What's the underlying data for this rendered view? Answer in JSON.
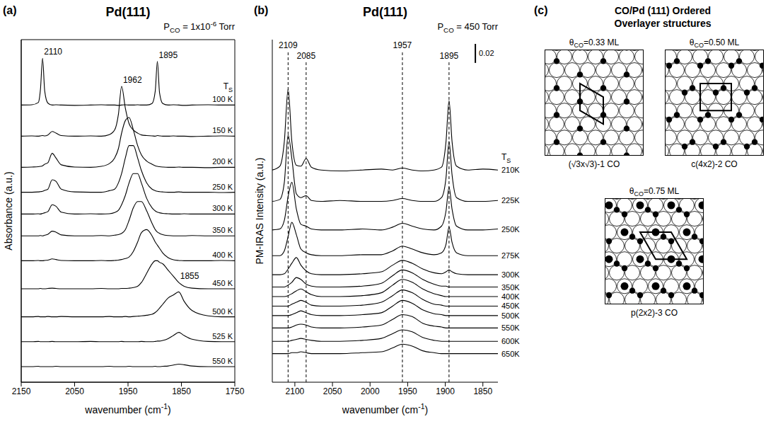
{
  "chart_data": [
    {
      "type": "line",
      "panel": "(a)",
      "title": "Pd(111)",
      "subtitle": [
        "P",
        {
          "sub": "CO"
        },
        " = 1x10",
        {
          "sup": "-6"
        },
        " Torr"
      ],
      "x_label": [
        "wavenumber (cm",
        {
          "sup": "-1"
        },
        ")"
      ],
      "y_label": "Absorbance (a.u.)",
      "legend_title": [
        "T",
        {
          "sub": "S"
        }
      ],
      "x": [
        2150,
        2130,
        2118,
        2114,
        2110,
        2106,
        2100,
        2092,
        2085,
        2075,
        2050,
        2020,
        2000,
        1985,
        1975,
        1968,
        1962,
        1955,
        1948,
        1940,
        1932,
        1925,
        1915,
        1905,
        1899,
        1895,
        1891,
        1885,
        1875,
        1865,
        1855,
        1845,
        1830,
        1800,
        1775,
        1750
      ],
      "xlim": [
        2150,
        1750
      ],
      "xticks": [
        2150,
        2050,
        1950,
        1850,
        1750
      ],
      "ylim": [
        1.5,
        12.5
      ],
      "tick_labels": "x",
      "grid": false,
      "color": "#000000",
      "series": [
        {
          "name": "100 K",
          "values": [
            10.4,
            10.41,
            10.48,
            10.9,
            11.9,
            10.85,
            10.46,
            10.4,
            10.41,
            10.4,
            10.39,
            10.4,
            10.41,
            10.4,
            10.4,
            10.39,
            10.4,
            10.41,
            10.4,
            10.4,
            10.41,
            10.4,
            10.4,
            10.45,
            10.85,
            11.8,
            10.8,
            10.45,
            10.4,
            10.41,
            10.4,
            10.39,
            10.4,
            10.41,
            10.4,
            10.4
          ]
        },
        {
          "name": "150 K",
          "values": [
            9.4,
            9.41,
            9.4,
            9.41,
            9.42,
            9.41,
            9.44,
            9.55,
            9.5,
            9.42,
            9.4,
            9.41,
            9.4,
            9.45,
            9.6,
            10.1,
            11.0,
            10.3,
            9.8,
            9.6,
            9.5,
            9.44,
            9.42,
            9.41,
            9.4,
            9.42,
            9.41,
            9.4,
            9.4,
            9.41,
            9.4,
            9.4,
            9.39,
            9.4,
            9.41,
            9.4
          ]
        },
        {
          "name": "200 K",
          "values": [
            8.4,
            8.41,
            8.42,
            8.43,
            8.45,
            8.5,
            8.55,
            8.85,
            8.7,
            8.48,
            8.41,
            8.4,
            8.43,
            8.52,
            8.7,
            9.0,
            9.5,
            9.9,
            10.0,
            9.6,
            9.1,
            8.8,
            8.6,
            8.5,
            8.45,
            8.43,
            8.42,
            8.41,
            8.4,
            8.4,
            8.41,
            8.4,
            8.4,
            8.39,
            8.4,
            8.4
          ]
        },
        {
          "name": "250 K",
          "values": [
            7.6,
            7.6,
            7.61,
            7.62,
            7.63,
            7.66,
            7.7,
            8.0,
            7.95,
            7.7,
            7.61,
            7.6,
            7.6,
            7.65,
            7.7,
            7.9,
            8.2,
            8.7,
            9.1,
            9.1,
            8.7,
            8.3,
            7.9,
            7.7,
            7.65,
            7.63,
            7.62,
            7.61,
            7.6,
            7.6,
            7.61,
            7.6,
            7.6,
            7.6,
            7.59,
            7.6
          ]
        },
        {
          "name": "300 K",
          "values": [
            6.9,
            6.9,
            6.91,
            6.9,
            6.92,
            6.94,
            6.98,
            7.2,
            7.15,
            6.96,
            6.9,
            6.91,
            6.9,
            6.91,
            6.95,
            7.02,
            7.2,
            7.5,
            7.9,
            8.2,
            8.2,
            7.9,
            7.4,
            7.1,
            7.0,
            6.96,
            6.94,
            6.92,
            6.91,
            6.9,
            6.9,
            6.91,
            6.9,
            6.9,
            6.9,
            6.9
          ]
        },
        {
          "name": "350 K",
          "values": [
            6.2,
            6.2,
            6.2,
            6.21,
            6.2,
            6.22,
            6.25,
            6.35,
            6.32,
            6.23,
            6.2,
            6.2,
            6.21,
            6.2,
            6.22,
            6.24,
            6.28,
            6.4,
            6.7,
            7.1,
            7.3,
            7.3,
            7.0,
            6.6,
            6.4,
            6.32,
            6.28,
            6.24,
            6.21,
            6.2,
            6.2,
            6.2,
            6.21,
            6.2,
            6.2,
            6.2
          ]
        },
        {
          "name": "400 K",
          "values": [
            5.4,
            5.4,
            5.41,
            5.4,
            5.4,
            5.41,
            5.42,
            5.46,
            5.44,
            5.41,
            5.4,
            5.4,
            5.41,
            5.4,
            5.41,
            5.42,
            5.44,
            5.47,
            5.52,
            5.7,
            6.0,
            6.3,
            6.4,
            6.2,
            6.0,
            5.9,
            5.8,
            5.65,
            5.5,
            5.43,
            5.41,
            5.4,
            5.4,
            5.4,
            5.41,
            5.4
          ]
        },
        {
          "name": "450 K",
          "values": [
            4.5,
            4.5,
            4.5,
            4.51,
            4.5,
            4.5,
            4.51,
            4.52,
            4.51,
            4.5,
            4.5,
            4.5,
            4.51,
            4.5,
            4.5,
            4.5,
            4.51,
            4.51,
            4.52,
            4.54,
            4.58,
            4.7,
            5.0,
            5.3,
            5.4,
            5.4,
            5.35,
            5.3,
            5.1,
            4.9,
            4.7,
            4.58,
            4.52,
            4.5,
            4.5,
            4.5
          ]
        },
        {
          "name": "500 K",
          "values": [
            3.6,
            3.6,
            3.61,
            3.6,
            3.6,
            3.6,
            3.61,
            3.6,
            3.6,
            3.61,
            3.6,
            3.6,
            3.6,
            3.61,
            3.6,
            3.6,
            3.6,
            3.61,
            3.6,
            3.61,
            3.62,
            3.63,
            3.65,
            3.68,
            3.74,
            3.8,
            3.88,
            4.0,
            4.2,
            4.3,
            4.4,
            4.1,
            3.8,
            3.63,
            3.6,
            3.6
          ]
        },
        {
          "name": "525 K",
          "values": [
            2.8,
            2.8,
            2.81,
            2.8,
            2.8,
            2.8,
            2.8,
            2.81,
            2.8,
            2.8,
            2.8,
            2.81,
            2.8,
            2.8,
            2.8,
            2.8,
            2.81,
            2.8,
            2.8,
            2.8,
            2.8,
            2.81,
            2.8,
            2.8,
            2.81,
            2.82,
            2.82,
            2.84,
            2.9,
            3.0,
            3.1,
            3.0,
            2.88,
            2.81,
            2.8,
            2.8
          ]
        },
        {
          "name": "550 K",
          "values": [
            2.0,
            2.0,
            2.01,
            2.0,
            2.0,
            2.0,
            2.0,
            2.0,
            2.01,
            2.0,
            2.0,
            2.0,
            2.0,
            2.01,
            2.0,
            2.0,
            2.0,
            2.0,
            2.01,
            2.0,
            2.0,
            2.0,
            2.0,
            2.0,
            2.01,
            2.0,
            2.0,
            2.01,
            2.02,
            2.05,
            2.08,
            2.06,
            2.02,
            2.0,
            2.0,
            2.0
          ]
        }
      ],
      "peak_labels": [
        {
          "value": 2110,
          "series": "100 K"
        },
        {
          "value": 1962,
          "series": "150 K"
        },
        {
          "value": 1895,
          "series": "100 K"
        },
        {
          "value": 1855,
          "series": "450 K"
        }
      ]
    },
    {
      "type": "line",
      "panel": "(b)",
      "title": "Pd(111)",
      "subtitle": [
        "P",
        {
          "sub": "CO"
        },
        " = 450 Torr"
      ],
      "x_label": [
        "wavenumber (cm",
        {
          "sup": "-1"
        },
        ")"
      ],
      "y_label": "PM-IRAS Intensity (a.u.)",
      "legend_title": [
        "T",
        {
          "sub": "S"
        }
      ],
      "x": [
        2130,
        2120,
        2114,
        2109,
        2104,
        2098,
        2092,
        2085,
        2078,
        2065,
        2040,
        2010,
        1985,
        1970,
        1957,
        1944,
        1930,
        1915,
        1905,
        1899,
        1895,
        1891,
        1885,
        1870,
        1850,
        1830
      ],
      "xlim": [
        2130,
        1830
      ],
      "xticks": [
        2100,
        2050,
        2000,
        1950,
        1900,
        1850
      ],
      "ylim": [
        0,
        0.36
      ],
      "tick_labels": "x",
      "grid": false,
      "color": "#000000",
      "scale_bar": 0.02,
      "peak_lines": [
        2109,
        2085,
        1957,
        1895
      ],
      "series": [
        {
          "name": "210K",
          "values": [
            0.223,
            0.227,
            0.253,
            0.308,
            0.253,
            0.228,
            0.227,
            0.235,
            0.226,
            0.223,
            0.222,
            0.223,
            0.224,
            0.223,
            0.225,
            0.223,
            0.222,
            0.223,
            0.226,
            0.253,
            0.296,
            0.253,
            0.227,
            0.223,
            0.224,
            0.223
          ]
        },
        {
          "name": "225K",
          "values": [
            0.19,
            0.192,
            0.21,
            0.26,
            0.235,
            0.198,
            0.194,
            0.196,
            0.191,
            0.19,
            0.191,
            0.19,
            0.19,
            0.191,
            0.193,
            0.191,
            0.19,
            0.19,
            0.194,
            0.215,
            0.253,
            0.218,
            0.194,
            0.19,
            0.19,
            0.191
          ]
        },
        {
          "name": "250K",
          "values": [
            0.16,
            0.161,
            0.17,
            0.195,
            0.21,
            0.182,
            0.166,
            0.164,
            0.161,
            0.16,
            0.16,
            0.161,
            0.16,
            0.163,
            0.167,
            0.164,
            0.161,
            0.16,
            0.164,
            0.18,
            0.205,
            0.182,
            0.164,
            0.16,
            0.16,
            0.161
          ]
        },
        {
          "name": "275K",
          "values": [
            0.133,
            0.133,
            0.138,
            0.153,
            0.168,
            0.155,
            0.14,
            0.136,
            0.134,
            0.133,
            0.133,
            0.134,
            0.134,
            0.138,
            0.143,
            0.14,
            0.136,
            0.134,
            0.136,
            0.145,
            0.163,
            0.147,
            0.136,
            0.133,
            0.133,
            0.133
          ]
        },
        {
          "name": "300K",
          "values": [
            0.113,
            0.113,
            0.114,
            0.119,
            0.125,
            0.131,
            0.123,
            0.117,
            0.114,
            0.113,
            0.113,
            0.114,
            0.116,
            0.123,
            0.128,
            0.125,
            0.119,
            0.115,
            0.114,
            0.116,
            0.118,
            0.116,
            0.114,
            0.113,
            0.113,
            0.113
          ]
        },
        {
          "name": "350K",
          "values": [
            0.1,
            0.1,
            0.1,
            0.102,
            0.105,
            0.11,
            0.108,
            0.103,
            0.101,
            0.1,
            0.1,
            0.101,
            0.104,
            0.112,
            0.118,
            0.115,
            0.108,
            0.103,
            0.101,
            0.101,
            0.1,
            0.1,
            0.1,
            0.1,
            0.1,
            0.1
          ]
        },
        {
          "name": "400K",
          "values": [
            0.09,
            0.09,
            0.09,
            0.091,
            0.093,
            0.096,
            0.098,
            0.095,
            0.092,
            0.09,
            0.09,
            0.091,
            0.094,
            0.102,
            0.108,
            0.105,
            0.098,
            0.093,
            0.091,
            0.09,
            0.09,
            0.09,
            0.09,
            0.09,
            0.09,
            0.09
          ]
        },
        {
          "name": "450K",
          "values": [
            0.08,
            0.08,
            0.08,
            0.08,
            0.082,
            0.084,
            0.086,
            0.084,
            0.081,
            0.08,
            0.08,
            0.081,
            0.084,
            0.091,
            0.097,
            0.094,
            0.087,
            0.082,
            0.081,
            0.08,
            0.08,
            0.08,
            0.08,
            0.08,
            0.08,
            0.08
          ]
        },
        {
          "name": "500K",
          "values": [
            0.07,
            0.07,
            0.07,
            0.07,
            0.071,
            0.073,
            0.075,
            0.073,
            0.071,
            0.07,
            0.07,
            0.071,
            0.073,
            0.08,
            0.086,
            0.083,
            0.076,
            0.072,
            0.071,
            0.07,
            0.07,
            0.07,
            0.07,
            0.07,
            0.07,
            0.07
          ]
        },
        {
          "name": "550K",
          "values": [
            0.057,
            0.057,
            0.057,
            0.057,
            0.058,
            0.06,
            0.061,
            0.06,
            0.058,
            0.057,
            0.057,
            0.058,
            0.06,
            0.066,
            0.071,
            0.069,
            0.062,
            0.059,
            0.058,
            0.057,
            0.057,
            0.057,
            0.057,
            0.057,
            0.057,
            0.057
          ]
        },
        {
          "name": "600K",
          "values": [
            0.043,
            0.043,
            0.043,
            0.043,
            0.044,
            0.045,
            0.046,
            0.045,
            0.044,
            0.043,
            0.043,
            0.044,
            0.046,
            0.051,
            0.055,
            0.053,
            0.047,
            0.044,
            0.043,
            0.043,
            0.043,
            0.043,
            0.043,
            0.043,
            0.043,
            0.043
          ]
        },
        {
          "name": "650K",
          "values": [
            0.03,
            0.03,
            0.03,
            0.03,
            0.031,
            0.031,
            0.032,
            0.031,
            0.03,
            0.03,
            0.03,
            0.031,
            0.032,
            0.036,
            0.04,
            0.038,
            0.033,
            0.031,
            0.03,
            0.03,
            0.03,
            0.03,
            0.03,
            0.03,
            0.03,
            0.03
          ]
        }
      ]
    }
  ],
  "diagram": {
    "panel": "(c)",
    "title_lines": [
      "CO/Pd (111) Ordered",
      "Overlayer structures"
    ],
    "structures": [
      {
        "coverage": [
          "θ",
          {
            "sub": "CO"
          },
          "=0.33 ML"
        ],
        "name": "(√3x√3)-1 CO"
      },
      {
        "coverage": [
          "θ",
          {
            "sub": "CO"
          },
          "=0.50 ML"
        ],
        "name": "c(4x2)-2 CO"
      },
      {
        "coverage": [
          "θ",
          {
            "sub": "CO"
          },
          "=0.75 ML"
        ],
        "name": "p(2x2)-3 CO"
      }
    ]
  }
}
